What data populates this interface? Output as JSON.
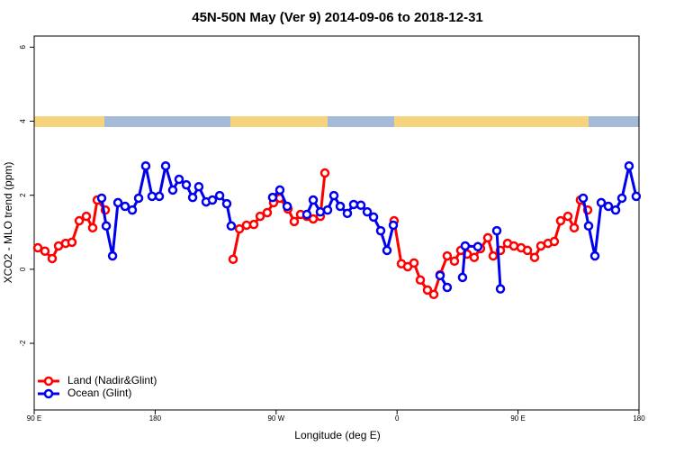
{
  "chart_data": {
    "type": "line",
    "title": "45N-50N May (Ver 9)   2014-09-06 to 2018-12-31",
    "x_label": "Longitude (deg E)",
    "y_label": "XCO2 - MLO trend (ppm)",
    "xlim": [
      90,
      540
    ],
    "ylim": [
      -3.8,
      6.3
    ],
    "xticks": [
      {
        "value": 90,
        "label": "90 E"
      },
      {
        "value": 180,
        "label": "180"
      },
      {
        "value": 270,
        "label": "90 W"
      },
      {
        "value": 360,
        "label": "0"
      },
      {
        "value": 450,
        "label": "90 E"
      },
      {
        "value": 540,
        "label": "180"
      }
    ],
    "yticks": [
      -2,
      0,
      2,
      4,
      6
    ],
    "legend": "bottom-left",
    "series": [
      {
        "name": "Land (Nadir&Glint)",
        "color": "#ff0000",
        "x": [
          92.7,
          98.0,
          103.4,
          108.1,
          113.4,
          118.1,
          123.5,
          128.8,
          133.5,
          136.9,
          142.9,
          null,
          238.0,
          242.7,
          248.0,
          253.4,
          258.1,
          263.4,
          268.1,
          272.8,
          278.8,
          283.5,
          288.2,
          292.9,
          297.6,
          302.9,
          306.3,
          null,
          357.8,
          363.2,
          367.9,
          372.6,
          377.3,
          382.6,
          387.3,
          392.0,
          397.3,
          402.7,
          407.4,
          412.1,
          417.4,
          422.1,
          427.5,
          431.5,
          436.9,
          442.2,
          446.9,
          452.3,
          457.0,
          462.3,
          467.0,
          472.3,
          477.0,
          481.7,
          487.1,
          491.8,
          496.4,
          501.8
        ],
        "values": [
          0.58,
          0.49,
          0.29,
          0.63,
          0.7,
          0.73,
          1.31,
          1.43,
          1.12,
          1.87,
          1.6,
          null,
          0.27,
          1.09,
          1.19,
          1.21,
          1.43,
          1.53,
          1.8,
          1.92,
          1.63,
          1.29,
          1.48,
          1.43,
          1.36,
          1.43,
          2.6,
          null,
          1.31,
          0.15,
          0.07,
          0.17,
          -0.29,
          -0.56,
          -0.68,
          -0.15,
          0.36,
          0.22,
          0.51,
          0.41,
          0.32,
          0.56,
          0.85,
          0.36,
          0.51,
          0.7,
          0.63,
          0.58,
          0.51,
          0.32,
          0.63,
          0.7,
          0.75,
          1.31,
          1.43,
          1.12,
          1.87,
          1.6
        ]
      },
      {
        "name": "Ocean (Glint)",
        "color": "#0000ee",
        "x": [
          140.2,
          143.6,
          148.3,
          152.3,
          157.6,
          163.0,
          167.7,
          173.0,
          177.7,
          183.1,
          187.8,
          193.1,
          197.8,
          203.2,
          207.9,
          212.5,
          217.9,
          222.6,
          228.0,
          233.3,
          236.6,
          null,
          267.4,
          272.8,
          278.2,
          null,
          292.9,
          297.6,
          302.9,
          308.3,
          313.0,
          317.7,
          323.0,
          327.7,
          333.1,
          337.8,
          342.5,
          347.8,
          352.5,
          357.2,
          null,
          392.0,
          397.3,
          null,
          408.7,
          410.7,
          420.1,
          null,
          434.2,
          436.9,
          null,
          498.5,
          502.5,
          507.2,
          511.9,
          517.2,
          522.6,
          527.3,
          532.6,
          537.9
        ],
        "values": [
          1.92,
          1.17,
          0.36,
          1.8,
          1.7,
          1.6,
          1.92,
          2.79,
          1.97,
          1.97,
          2.79,
          2.14,
          2.43,
          2.28,
          1.94,
          2.23,
          1.82,
          1.87,
          1.99,
          1.77,
          1.17,
          null,
          1.94,
          2.14,
          1.7,
          null,
          1.48,
          1.87,
          1.55,
          1.6,
          1.99,
          1.7,
          1.51,
          1.75,
          1.73,
          1.55,
          1.41,
          1.04,
          0.51,
          1.19,
          null,
          -0.17,
          -0.49,
          null,
          -0.22,
          0.63,
          0.61,
          null,
          1.04,
          -0.53,
          null,
          1.92,
          1.17,
          0.36,
          1.8,
          1.7,
          1.6,
          1.92,
          2.79,
          1.97
        ]
      }
    ]
  }
}
